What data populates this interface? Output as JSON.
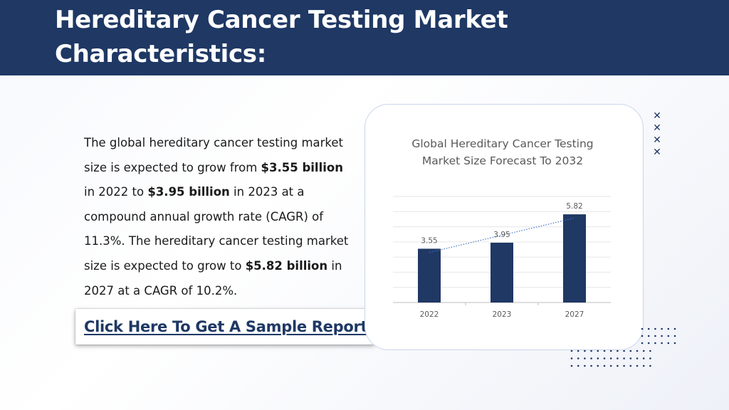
{
  "header": {
    "title_line1": "Hereditary Cancer Testing Market",
    "title_line2": "Characteristics:"
  },
  "body": {
    "p1": "The global hereditary cancer testing market size is expected to grow from ",
    "b1": "$3.55 billion",
    "p2": " in 2022 to ",
    "b2": "$3.95 billion",
    "p3": " in 2023 at a compound annual growth rate (CAGR) of 11.3%. The hereditary cancer testing market size is expected to grow to ",
    "b3": "$5.82 billion",
    "p4": " in 2027 at a CAGR of 10.2%."
  },
  "cta": {
    "label": "Click Here To Get A Sample Report"
  },
  "colors": {
    "header": "#1f3864",
    "bar": "#1f3864",
    "trend": "#4472c4"
  },
  "icons": {
    "decoration": "x-mark-icon"
  },
  "chart_data": {
    "type": "bar",
    "title": "Global Hereditary Cancer Testing Market Size Forecast To 2032",
    "categories": [
      "2022",
      "2023",
      "2027"
    ],
    "values": [
      3.55,
      3.95,
      5.82
    ],
    "data_labels": [
      "3.55",
      "3.95",
      "5.82"
    ],
    "ylim": [
      0,
      7
    ],
    "grid": true,
    "trendline": "dotted linear"
  }
}
